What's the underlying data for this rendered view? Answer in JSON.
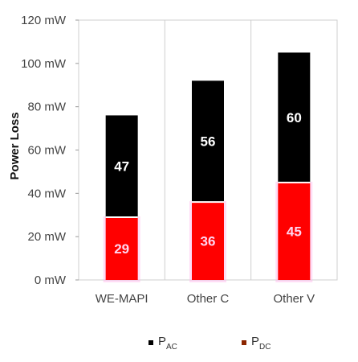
{
  "chart_data": {
    "type": "bar",
    "stacked": true,
    "categories": [
      "WE-MAPI",
      "Other C",
      "Other V"
    ],
    "series": [
      {
        "name": "PDC",
        "legend_main": "P",
        "legend_sub": "DC",
        "values": [
          29,
          36,
          45
        ],
        "color": "#ff0000",
        "label_color": "#ffd6f0"
      },
      {
        "name": "PAC",
        "legend_main": "P",
        "legend_sub": "AC",
        "values": [
          47,
          56,
          60
        ],
        "color": "#000000",
        "label_color": "#ffffff"
      }
    ],
    "ylabel": "Power Loss",
    "xlabel": "",
    "ylim": [
      0,
      120
    ],
    "y_ticks": [
      0,
      20,
      40,
      60,
      80,
      100,
      120
    ],
    "y_tick_unit": "mW",
    "grid": {
      "vertical": true,
      "horizontal": false
    },
    "legend_position": "bottom",
    "legend_marker_colors": {
      "PAC": "#000000",
      "PDC": "#8b2500"
    }
  }
}
